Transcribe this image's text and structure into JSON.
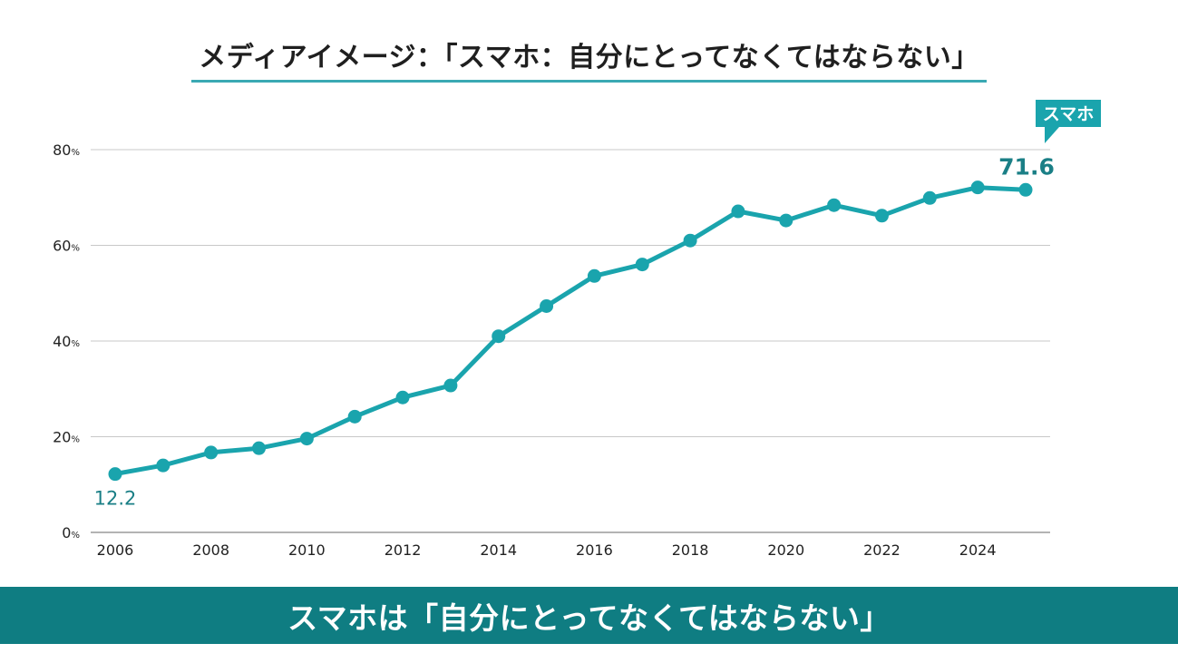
{
  "header": {
    "title": "メディアイメージ：「スマホ：自分にとってなくてはならない」"
  },
  "footer": {
    "text": "スマホは「自分にとってなくてはならない」"
  },
  "colors": {
    "series": "#1aa4ad",
    "footer_bg": "#0f7d82",
    "label_bg": "#1aa4ad",
    "value_text": "#1a7f86",
    "grid": "#c8c8c8"
  },
  "chart_data": {
    "type": "line",
    "x": [
      2006,
      2007,
      2008,
      2009,
      2010,
      2011,
      2012,
      2013,
      2014,
      2015,
      2016,
      2017,
      2018,
      2019,
      2020,
      2021,
      2022,
      2023,
      2024,
      2025
    ],
    "series": [
      {
        "name": "スマホ",
        "values": [
          12.2,
          14.0,
          16.7,
          17.6,
          19.6,
          24.2,
          28.2,
          30.7,
          41.0,
          47.3,
          53.6,
          56.0,
          61.0,
          67.1,
          65.2,
          68.4,
          66.2,
          69.9,
          72.1,
          71.6
        ]
      }
    ],
    "x_ticks": [
      "2006",
      "2008",
      "2010",
      "2012",
      "2014",
      "2016",
      "2018",
      "2020",
      "2022",
      "2024"
    ],
    "y_ticks": [
      "0%",
      "20%",
      "40%",
      "60%",
      "80%"
    ],
    "y_tick_values": [
      0,
      20,
      40,
      60,
      80
    ],
    "ylim": [
      0,
      80
    ],
    "xlim": [
      2006,
      2025
    ],
    "grid": true,
    "annotations": {
      "first_value_label": "12.2",
      "last_value_label": "71.6",
      "series_tag": "スマホ"
    },
    "title": "メディアイメージ：「スマホ：自分にとってなくてはならない」",
    "xlabel": "",
    "ylabel": ""
  }
}
